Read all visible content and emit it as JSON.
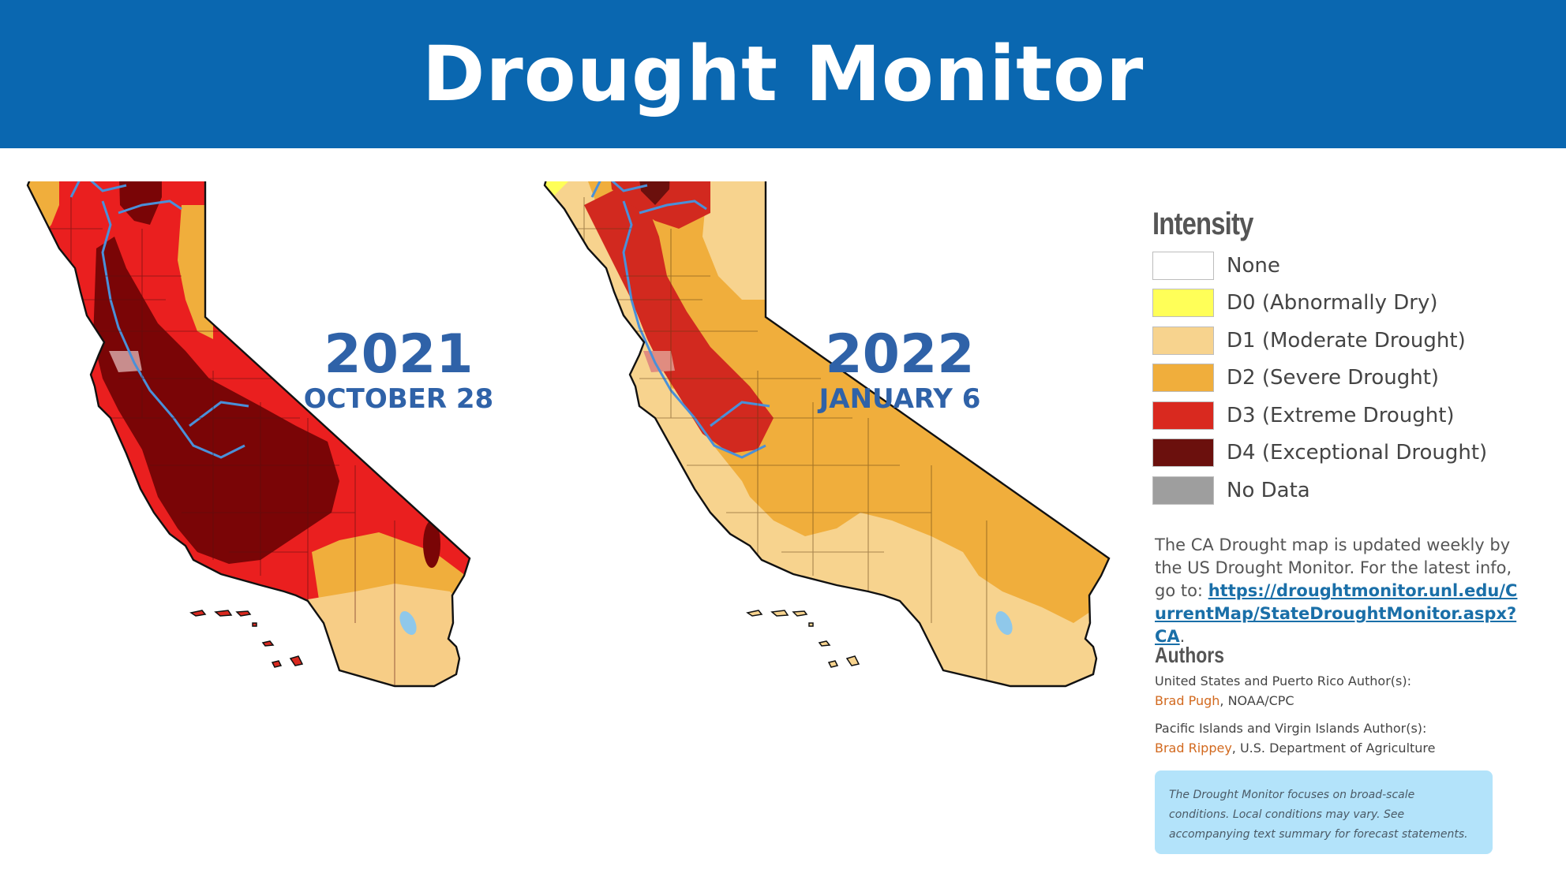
{
  "header": {
    "title": "Drought Monitor"
  },
  "maps": [
    {
      "year": "2021",
      "date": "OCTOBER 28"
    },
    {
      "year": "2022",
      "date": "JANUARY 6"
    }
  ],
  "legend": {
    "title": "Intensity",
    "items": [
      {
        "label": "None",
        "color": "#ffffff"
      },
      {
        "label": "D0 (Abnormally Dry)",
        "color": "#ffff58"
      },
      {
        "label": "D1 (Moderate Drought)",
        "color": "#f7d38e"
      },
      {
        "label": "D2 (Severe Drought)",
        "color": "#f0ae3c"
      },
      {
        "label": "D3 (Extreme Drought)",
        "color": "#d9291f"
      },
      {
        "label": "D4 (Exceptional Drought)",
        "color": "#6b100d"
      },
      {
        "label": "No Data",
        "color": "#9e9e9e"
      }
    ]
  },
  "info": {
    "text": "The CA Drought map is updated weekly by the US Drought Monitor. For the latest info, go to:",
    "link": "https://droughtmonitor.unl.edu/CurrentMap/StateDroughtMonitor.aspx?CA",
    "link_suffix": "."
  },
  "authors": {
    "title": "Authors",
    "groups": [
      {
        "label": "United States and Puerto Rico Author(s):",
        "name": "Brad Pugh",
        "affiliation": ", NOAA/CPC"
      },
      {
        "label": "Pacific Islands and Virgin Islands Author(s):",
        "name": "Brad Rippey",
        "affiliation": ", U.S. Department of Agriculture"
      }
    ]
  },
  "notice": "The Drought Monitor focuses on broad-scale conditions. Local conditions may vary. See accompanying text summary for forecast statements.",
  "colors": {
    "header_bg": "#0a67b0",
    "date_text": "#2f62a8",
    "river": "#4a90d9",
    "link": "#1a6fa8",
    "author_name": "#d2691e",
    "notice_bg": "#b3e3fa"
  }
}
